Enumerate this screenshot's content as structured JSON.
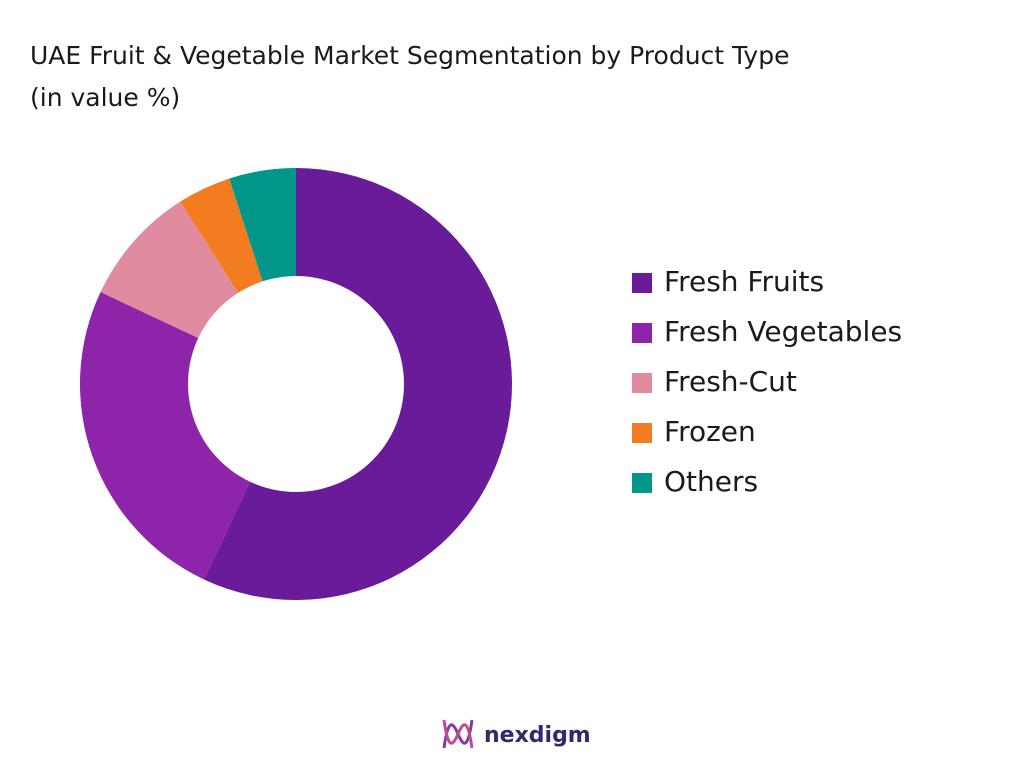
{
  "chart_data": {
    "type": "donut",
    "title": "UAE Fruit & Vegetable Market Segmentation by Product Type",
    "subtitle": "(in value %)",
    "categories": [
      "Fresh Fruits",
      "Fresh Vegetables",
      "Fresh-Cut",
      "Frozen",
      "Others"
    ],
    "values": [
      57,
      25,
      9,
      4,
      5
    ],
    "colors": [
      "#6a1b9a",
      "#8e24aa",
      "#e08ba0",
      "#f47c20",
      "#00968a"
    ],
    "legend": "right"
  },
  "footer": {
    "brand": "nexdigm"
  }
}
